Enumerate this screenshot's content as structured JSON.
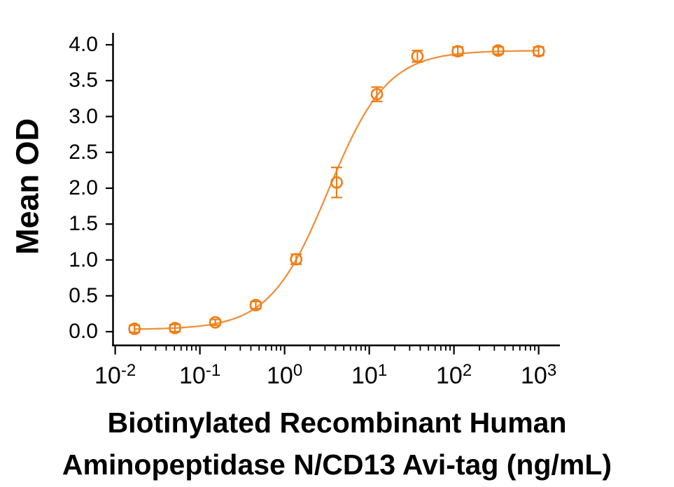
{
  "chart_data": {
    "type": "scatter",
    "subtype": "dose-response-curve",
    "title_lines": [
      "Biotinylated Recombinant Human",
      "Aminopeptidase N/CD13 Avi-tag (ng/mL)"
    ],
    "ylabel": "Mean OD",
    "x_scale": "log10",
    "xlim_log": [
      -2.03,
      3.26
    ],
    "ylim": [
      0,
      4.2
    ],
    "grid": "off",
    "legend": "none",
    "y_ticks": {
      "values": [
        0,
        0.5,
        1.0,
        1.5,
        2.0,
        2.5,
        3.0,
        3.5,
        4.0
      ],
      "labels": [
        "0.0",
        "0.5",
        "1.0",
        "1.5",
        "2.0",
        "2.5",
        "3.0",
        "3.5",
        "4.0"
      ]
    },
    "x_ticks": {
      "base": "10",
      "exponents": [
        "-2",
        "-1",
        "0",
        "1",
        "2",
        "3"
      ],
      "minor": "log multiples 2-9 per decade"
    },
    "series": [
      {
        "name": "Mean OD",
        "marker": "open-circle",
        "x": [
          0.0169,
          0.0508,
          0.152,
          0.457,
          1.37,
          4.12,
          12.3,
          37,
          111,
          333,
          1000
        ],
        "y": [
          0.04,
          0.05,
          0.13,
          0.37,
          1.01,
          2.08,
          3.31,
          3.84,
          3.91,
          3.92,
          3.91
        ],
        "y_err": [
          0.05,
          0.05,
          0.04,
          0.05,
          0.07,
          0.21,
          0.1,
          0.08,
          0.06,
          0.05,
          0.06
        ]
      }
    ],
    "fit": {
      "model": "4PL",
      "bottom": 0.03,
      "top": 3.92,
      "ec50": 3.3,
      "hill": 1.25
    },
    "colors": {
      "marker": "#EF7E15",
      "curve": "#F0903C",
      "axis": "#000000",
      "text": "#000000",
      "background": "#FFFFFF"
    }
  }
}
